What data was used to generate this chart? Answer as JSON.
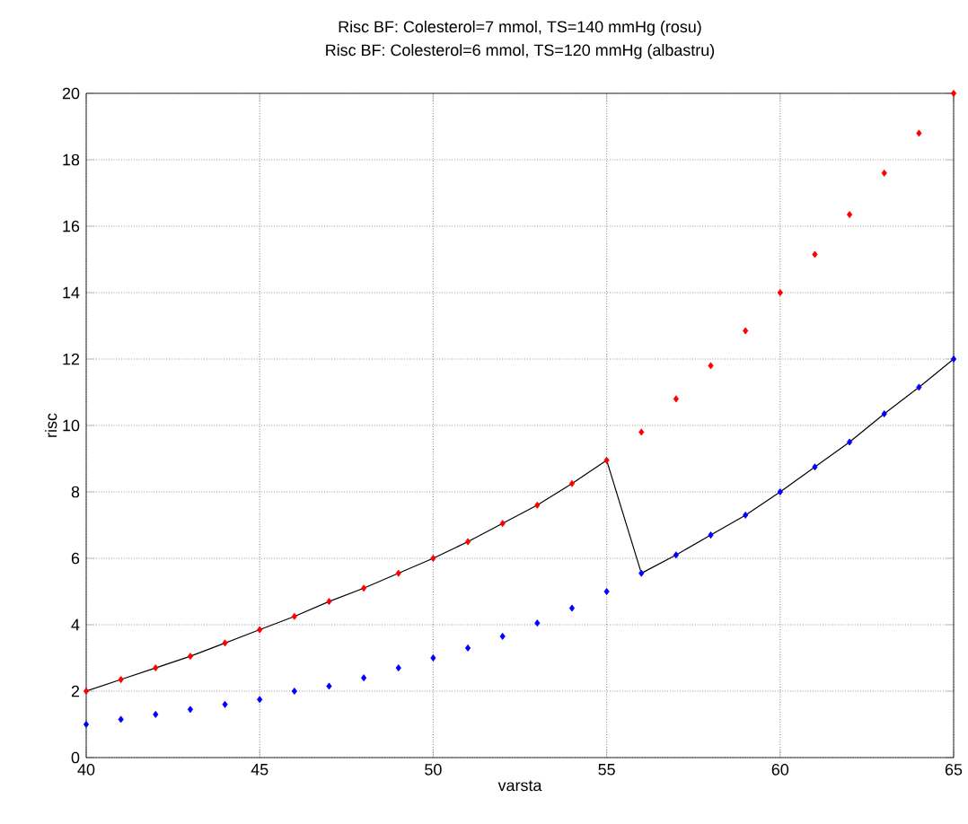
{
  "chart_data": {
    "type": "scatter",
    "title": "Risc BF: Colesterol=7 mmol, TS=140 mmHg (rosu)",
    "subtitle": "Risc BF: Colesterol=6 mmol, TS=120 mmHg (albastru)",
    "xlabel": "varsta",
    "ylabel": "risc",
    "x": [
      40,
      41,
      42,
      43,
      44,
      45,
      46,
      47,
      48,
      49,
      50,
      51,
      52,
      53,
      54,
      55,
      56,
      57,
      58,
      59,
      60,
      61,
      62,
      63,
      64,
      65
    ],
    "series": [
      {
        "color": "#ff0000",
        "marker": "diamond",
        "values": [
          2.0,
          2.35,
          2.7,
          3.05,
          3.45,
          3.85,
          4.25,
          4.7,
          5.1,
          5.55,
          6.0,
          6.5,
          7.05,
          7.6,
          8.25,
          8.95,
          9.8,
          10.8,
          11.8,
          12.85,
          14.0,
          15.15,
          16.35,
          17.6,
          18.8,
          20.0
        ]
      },
      {
        "color": "#0000ff",
        "marker": "diamond",
        "values": [
          1.0,
          1.15,
          1.3,
          1.45,
          1.6,
          1.75,
          2.0,
          2.15,
          2.4,
          2.7,
          3.0,
          3.3,
          3.65,
          4.05,
          4.5,
          5.0,
          5.55,
          6.1,
          6.7,
          7.3,
          8.0,
          8.75,
          9.5,
          10.35,
          11.15,
          12.0
        ]
      },
      {
        "type": "line",
        "color": "#000000",
        "marker": "none",
        "line_style": "solid",
        "values": [
          2.0,
          2.35,
          2.7,
          3.05,
          3.45,
          3.85,
          4.25,
          4.7,
          5.1,
          5.55,
          6.0,
          6.5,
          7.05,
          7.6,
          8.25,
          8.95,
          5.55,
          6.1,
          6.7,
          7.3,
          8.0,
          8.75,
          9.5,
          10.35,
          11.15,
          12.0
        ]
      }
    ],
    "xlim": [
      40,
      65
    ],
    "xticks": [
      40,
      45,
      50,
      55,
      60,
      65
    ],
    "ylim": [
      0,
      20
    ],
    "yticks": [
      0,
      2,
      4,
      6,
      8,
      10,
      12,
      14,
      16,
      18,
      20
    ],
    "grid": true
  }
}
